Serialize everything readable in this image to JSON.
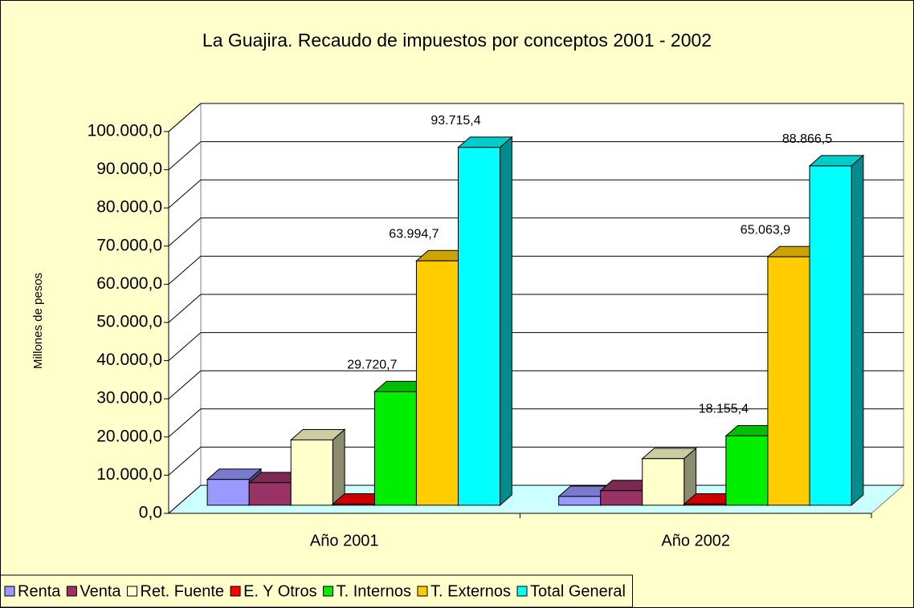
{
  "chart_data": {
    "type": "bar3d",
    "title": "La Guajira. Recaudo de impuestos por conceptos 2001 - 2002",
    "y_label": "Millones de pesos",
    "categories": [
      "Año 2001",
      "Año 2002"
    ],
    "series": [
      {
        "name": "Renta",
        "color": "#9999ff",
        "values": [
          6750,
          2300
        ],
        "value_labels": [
          null,
          null
        ]
      },
      {
        "name": "Venta",
        "color": "#993366",
        "values": [
          5900,
          3800
        ],
        "value_labels": [
          null,
          null
        ]
      },
      {
        "name": "Ret. Fuente",
        "color": "#ffffcc",
        "values": [
          17100,
          12200
        ],
        "value_labels": [
          null,
          null
        ]
      },
      {
        "name": "E. Y Otros",
        "color": "#ff0000",
        "values": [
          300,
          300
        ],
        "value_labels": [
          null,
          null
        ]
      },
      {
        "name": "T. Internos",
        "color": "#00ee00",
        "values": [
          29720.7,
          18155.4
        ],
        "value_labels": [
          "29.720,7",
          "18.155,4"
        ]
      },
      {
        "name": "T. Externos",
        "color": "#ffcc00",
        "values": [
          63994.7,
          65063.9
        ],
        "value_labels": [
          "63.994,7",
          "65.063,9"
        ]
      },
      {
        "name": "Total General",
        "color": "#00ffff",
        "values": [
          93715.4,
          88866.5
        ],
        "value_labels": [
          "93.715,4",
          "88.866,5"
        ]
      }
    ],
    "ylim": [
      0,
      100000
    ],
    "yticks": [
      {
        "value": 0,
        "label": "0,0"
      },
      {
        "value": 10000,
        "label": "10.000,0"
      },
      {
        "value": 20000,
        "label": "20.000,0"
      },
      {
        "value": 30000,
        "label": "30.000,0"
      },
      {
        "value": 40000,
        "label": "40.000,0"
      },
      {
        "value": 50000,
        "label": "50.000,0"
      },
      {
        "value": 60000,
        "label": "60.000,0"
      },
      {
        "value": 70000,
        "label": "70.000,0"
      },
      {
        "value": 80000,
        "label": "80.000,0"
      },
      {
        "value": 90000,
        "label": "90.000,0"
      },
      {
        "value": 100000,
        "label": "100.000,0"
      }
    ],
    "grid": true,
    "legend": "bottom"
  }
}
